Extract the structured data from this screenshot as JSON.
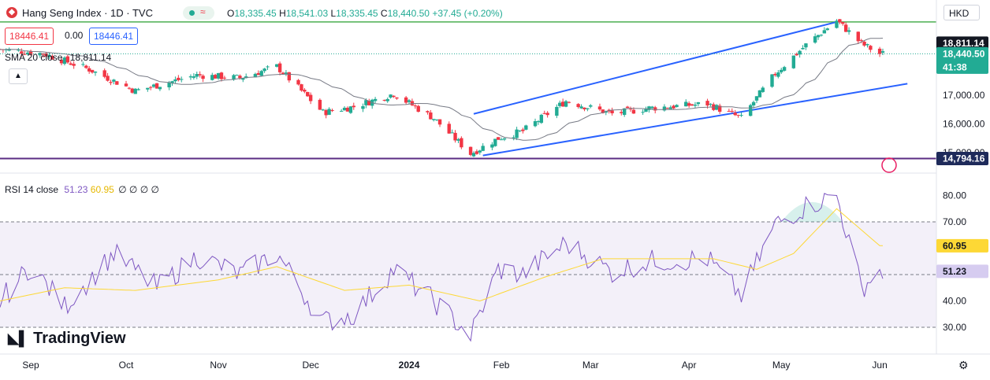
{
  "header": {
    "title": "Hang Seng Index · 1D · TVC",
    "wave_icon": "≈",
    "ohlc": [
      {
        "label": "O",
        "value": "18,335.45"
      },
      {
        "label": "H",
        "value": "18,541.03"
      },
      {
        "label": "L",
        "value": "18,335.45"
      },
      {
        "label": "C",
        "value": "18,440.50"
      }
    ],
    "change": "+37.45 (+0.20%)"
  },
  "trade": {
    "sell": "18446.41",
    "spread": "0.00",
    "buy": "18446.41"
  },
  "sma": {
    "label": "SMA 20 close",
    "value": "18,811.14"
  },
  "rsi": {
    "label": "RSI 14 close",
    "value1": "51.23",
    "value2": "60.95",
    "extra": "∅ ∅ ∅ ∅"
  },
  "currency": "HKD",
  "branding": "TradingView",
  "colors": {
    "up": "#22ab94",
    "down": "#f23645",
    "trend": "#2962ff",
    "sma": "#787b86",
    "hline_top": "#4caf50",
    "hline_bottom": "#5b2c83",
    "rsi": "#7e57c2",
    "rsi_ma": "#fdd835"
  },
  "price_axis": {
    "ticks": [
      "17,000.00",
      "16,000.00",
      "15,000.00"
    ],
    "badges": [
      {
        "value": "18,811.14",
        "label": "",
        "color": "#131722"
      },
      {
        "value": "18,440.50",
        "label": "41:38",
        "color": "#22ab94"
      },
      {
        "value": "14,794.16",
        "label": "",
        "color": "#1e2a5a"
      }
    ]
  },
  "rsi_axis": {
    "ticks": [
      "80.00",
      "70.00",
      "40.00",
      "30.00"
    ],
    "badges": [
      {
        "value": "60.95",
        "color": "#fdd835",
        "text_color": "#131722"
      },
      {
        "value": "51.23",
        "color": "#d6ccf0",
        "text_color": "#131722"
      }
    ]
  },
  "time_axis": [
    "Sep",
    "Oct",
    "Nov",
    "Dec",
    "2024",
    "Feb",
    "Mar",
    "Apr",
    "May",
    "Jun"
  ],
  "chart_data": [
    {
      "type": "candlestick",
      "title": "Hang Seng Index · 1D · TVC",
      "x_range": [
        "2023-08-22",
        "2024-06-04"
      ],
      "y_range": [
        14794.16,
        19050
      ],
      "close_anchors": [
        {
          "x": "2023-08-22",
          "y": 18600
        },
        {
          "x": "2023-09-05",
          "y": 18450
        },
        {
          "x": "2023-09-20",
          "y": 17900
        },
        {
          "x": "2023-10-05",
          "y": 17150
        },
        {
          "x": "2023-10-25",
          "y": 17700
        },
        {
          "x": "2023-11-08",
          "y": 17600
        },
        {
          "x": "2023-11-20",
          "y": 18000
        },
        {
          "x": "2023-12-05",
          "y": 16400
        },
        {
          "x": "2023-12-15",
          "y": 16600
        },
        {
          "x": "2023-12-28",
          "y": 17050
        },
        {
          "x": "2024-01-10",
          "y": 16200
        },
        {
          "x": "2024-01-22",
          "y": 14961
        },
        {
          "x": "2024-01-31",
          "y": 15500
        },
        {
          "x": "2024-02-08",
          "y": 15750
        },
        {
          "x": "2024-02-22",
          "y": 16800
        },
        {
          "x": "2024-03-08",
          "y": 16350
        },
        {
          "x": "2024-03-20",
          "y": 16550
        },
        {
          "x": "2024-04-08",
          "y": 16700
        },
        {
          "x": "2024-04-19",
          "y": 16200
        },
        {
          "x": "2024-04-30",
          "y": 17750
        },
        {
          "x": "2024-05-10",
          "y": 18750
        },
        {
          "x": "2024-05-20",
          "y": 19600
        },
        {
          "x": "2024-05-28",
          "y": 18800
        },
        {
          "x": "2024-06-03",
          "y": 18440.5
        }
      ],
      "sma": {
        "name": "SMA 20 close",
        "last": 18811.14
      },
      "trend_lines": [
        {
          "from": {
            "x": "2024-01-23",
            "y": 16350
          },
          "to": {
            "x": "2024-05-20",
            "y": 19550
          }
        },
        {
          "from": {
            "x": "2024-01-26",
            "y": 14900
          },
          "to": {
            "x": "2024-06-12",
            "y": 17400
          }
        }
      ],
      "horizontal_lines": [
        19550,
        14794.16
      ],
      "last_close": 18440.5
    },
    {
      "type": "line",
      "title": "RSI 14 close",
      "y_range": [
        25,
        85
      ],
      "levels": [
        70,
        50,
        30
      ],
      "series": [
        {
          "name": "RSI",
          "last": 51.23,
          "anchors": [
            {
              "x": "2023-08-22",
              "y": 40
            },
            {
              "x": "2023-09-01",
              "y": 53
            },
            {
              "x": "2023-09-12",
              "y": 38
            },
            {
              "x": "2023-09-28",
              "y": 58
            },
            {
              "x": "2023-10-12",
              "y": 45
            },
            {
              "x": "2023-10-25",
              "y": 57
            },
            {
              "x": "2023-11-08",
              "y": 50
            },
            {
              "x": "2023-11-20",
              "y": 58
            },
            {
              "x": "2023-12-05",
              "y": 32
            },
            {
              "x": "2023-12-15",
              "y": 35
            },
            {
              "x": "2023-12-28",
              "y": 52
            },
            {
              "x": "2024-01-10",
              "y": 40
            },
            {
              "x": "2024-01-22",
              "y": 27
            },
            {
              "x": "2024-01-31",
              "y": 52
            },
            {
              "x": "2024-02-08",
              "y": 50
            },
            {
              "x": "2024-02-22",
              "y": 62
            },
            {
              "x": "2024-03-08",
              "y": 51
            },
            {
              "x": "2024-03-20",
              "y": 55
            },
            {
              "x": "2024-04-08",
              "y": 56
            },
            {
              "x": "2024-04-19",
              "y": 42
            },
            {
              "x": "2024-04-30",
              "y": 69
            },
            {
              "x": "2024-05-10",
              "y": 76
            },
            {
              "x": "2024-05-20",
              "y": 80
            },
            {
              "x": "2024-05-28",
              "y": 45
            },
            {
              "x": "2024-06-03",
              "y": 51.23
            }
          ]
        },
        {
          "name": "RSI MA",
          "last": 60.95,
          "anchors": [
            {
              "x": "2023-08-22",
              "y": 40
            },
            {
              "x": "2023-09-12",
              "y": 45
            },
            {
              "x": "2023-10-05",
              "y": 44
            },
            {
              "x": "2023-11-01",
              "y": 48
            },
            {
              "x": "2023-11-20",
              "y": 53
            },
            {
              "x": "2023-12-12",
              "y": 44
            },
            {
              "x": "2024-01-02",
              "y": 46
            },
            {
              "x": "2024-01-25",
              "y": 40
            },
            {
              "x": "2024-02-15",
              "y": 49
            },
            {
              "x": "2024-03-05",
              "y": 56
            },
            {
              "x": "2024-04-10",
              "y": 56
            },
            {
              "x": "2024-04-24",
              "y": 52
            },
            {
              "x": "2024-05-06",
              "y": 58
            },
            {
              "x": "2024-05-20",
              "y": 75
            },
            {
              "x": "2024-06-03",
              "y": 60.95
            }
          ]
        }
      ]
    }
  ]
}
